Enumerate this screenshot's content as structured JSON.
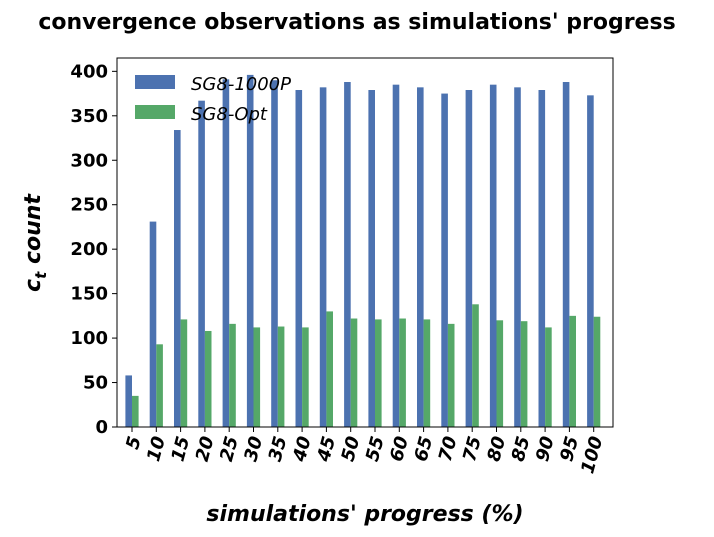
{
  "chart_data": {
    "type": "bar",
    "title": "convergence observations as simulations' progress",
    "xlabel": "simulations' progress (%)",
    "ylabel_main": "c",
    "ylabel_sub": "t",
    "ylabel_rest": " count",
    "ylim": [
      0,
      415
    ],
    "yticks": [
      0,
      50,
      100,
      150,
      200,
      250,
      300,
      350,
      400
    ],
    "grid": false,
    "legend_position": "top-left",
    "categories": [
      "5",
      "10",
      "15",
      "20",
      "25",
      "30",
      "35",
      "40",
      "45",
      "50",
      "55",
      "60",
      "65",
      "70",
      "75",
      "80",
      "85",
      "90",
      "95",
      "100"
    ],
    "series": [
      {
        "name": "SG8-1000P",
        "color": "#4c72b0",
        "values": [
          58,
          231,
          334,
          367,
          391,
          396,
          390,
          379,
          382,
          388,
          379,
          385,
          382,
          375,
          379,
          385,
          382,
          379,
          388,
          373
        ]
      },
      {
        "name": "SG8-Opt",
        "color": "#55a868",
        "values": [
          35,
          93,
          121,
          108,
          116,
          112,
          113,
          112,
          130,
          122,
          121,
          122,
          121,
          116,
          138,
          120,
          119,
          112,
          125,
          124
        ]
      }
    ]
  }
}
